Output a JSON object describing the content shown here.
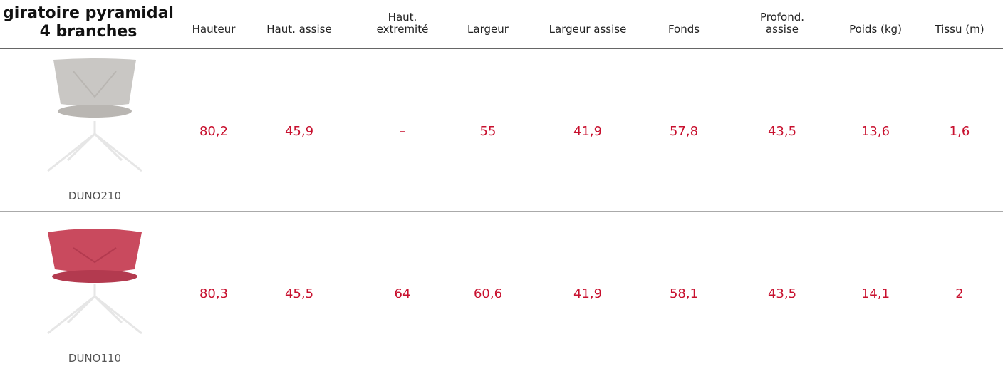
{
  "header": {
    "title": "giratoire pyramidal\n4 branches",
    "columns": [
      "Hauteur",
      "Haut. assise",
      "Haut.\nextremité",
      "Largeur",
      "Largeur assise",
      "Fonds",
      "Profond.\nassise",
      "Poids (kg)",
      "Tissu (m)"
    ]
  },
  "table": {
    "rows": [
      {
        "model": "DUNO210",
        "values": [
          "80,2",
          "45,9",
          "–",
          "55",
          "41,9",
          "57,8",
          "43,5",
          "13,6",
          "1,6"
        ]
      },
      {
        "model": "DUNO110",
        "values": [
          "80,3",
          "45,5",
          "64",
          "60,6",
          "41,9",
          "58,1",
          "43,5",
          "14,1",
          "2"
        ]
      }
    ]
  }
}
